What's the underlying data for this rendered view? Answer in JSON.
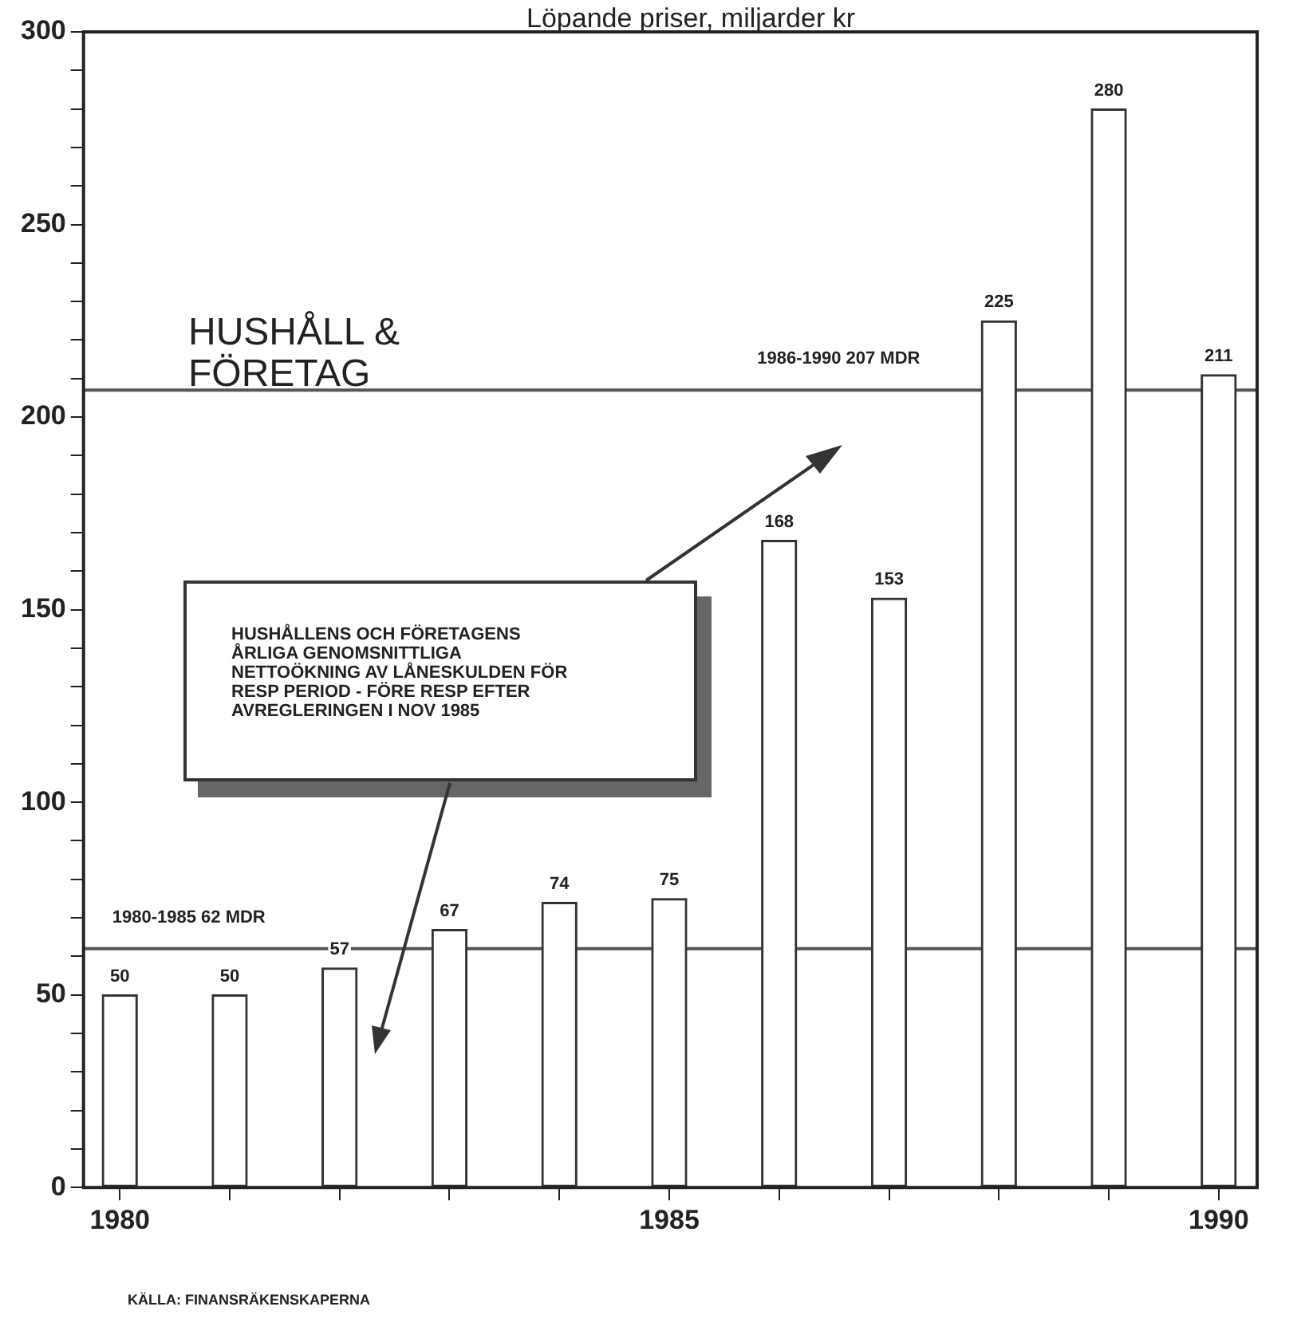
{
  "chart_data": {
    "type": "bar",
    "title": "Löpande priser, miljarder kr",
    "x": [
      1980,
      1981,
      1982,
      1983,
      1984,
      1985,
      1986,
      1987,
      1988,
      1989,
      1990
    ],
    "series": [
      {
        "color": "#ffffff",
        "values": [
          50,
          50,
          57,
          67,
          74,
          75,
          168,
          153,
          225,
          280,
          211
        ]
      }
    ],
    "xlim": [
      1979.67,
      1990.35
    ],
    "xticks": [
      1980,
      {
        "value": 1981,
        "label": null
      },
      {
        "value": 1982,
        "label": null
      },
      {
        "value": 1983,
        "label": null
      },
      {
        "value": 1984,
        "label": null
      },
      1985,
      {
        "value": 1986,
        "label": null
      },
      {
        "value": 1987,
        "label": null
      },
      {
        "value": 1988,
        "label": null
      },
      {
        "value": 1989,
        "label": null
      },
      1990
    ],
    "ylim": [
      0,
      300
    ],
    "yticks": [
      0,
      {
        "value": 10,
        "label": null
      },
      {
        "value": 20,
        "label": null
      },
      {
        "value": 30,
        "label": null
      },
      {
        "value": 40,
        "label": null
      },
      50,
      {
        "value": 60,
        "label": null
      },
      {
        "value": 70,
        "label": null
      },
      {
        "value": 80,
        "label": null
      },
      {
        "value": 90,
        "label": null
      },
      100,
      {
        "value": 110,
        "label": null
      },
      {
        "value": 120,
        "label": null
      },
      {
        "value": 130,
        "label": null
      },
      {
        "value": 140,
        "label": null
      },
      150,
      {
        "value": 160,
        "label": null
      },
      {
        "value": 170,
        "label": null
      },
      {
        "value": 180,
        "label": null
      },
      {
        "value": 190,
        "label": null
      },
      200,
      {
        "value": 210,
        "label": null
      },
      {
        "value": 220,
        "label": null
      },
      {
        "value": 230,
        "label": null
      },
      {
        "value": 240,
        "label": null
      },
      250,
      {
        "value": 260,
        "label": null
      },
      {
        "value": 270,
        "label": null
      },
      {
        "value": 280,
        "label": null
      },
      {
        "value": 290,
        "label": null
      },
      300
    ],
    "ref_lines": [
      {
        "axis": "y",
        "value": 62,
        "label": "1980-1985 62 MDR",
        "color": "#555555"
      },
      {
        "axis": "y",
        "value": 207,
        "label": "1986-1990 207 MDR",
        "color": "#555555"
      }
    ],
    "annotations": [
      "HUSHÅLL & FÖRETAG",
      "HUSHÅLLENS OCH FÖRETAGENS ÅRLIGA GENOMSNITTLIGA NETTOÖKNING AV LÅNESKULDEN FÖR RESP PERIOD - FÖRE RESP EFTER AVREGLERINGEN I NOV 1985",
      "KÄLLA: FINANSRÄKENSKAPERNA"
    ],
    "data_labels": true,
    "grid": false,
    "legend": false
  }
}
